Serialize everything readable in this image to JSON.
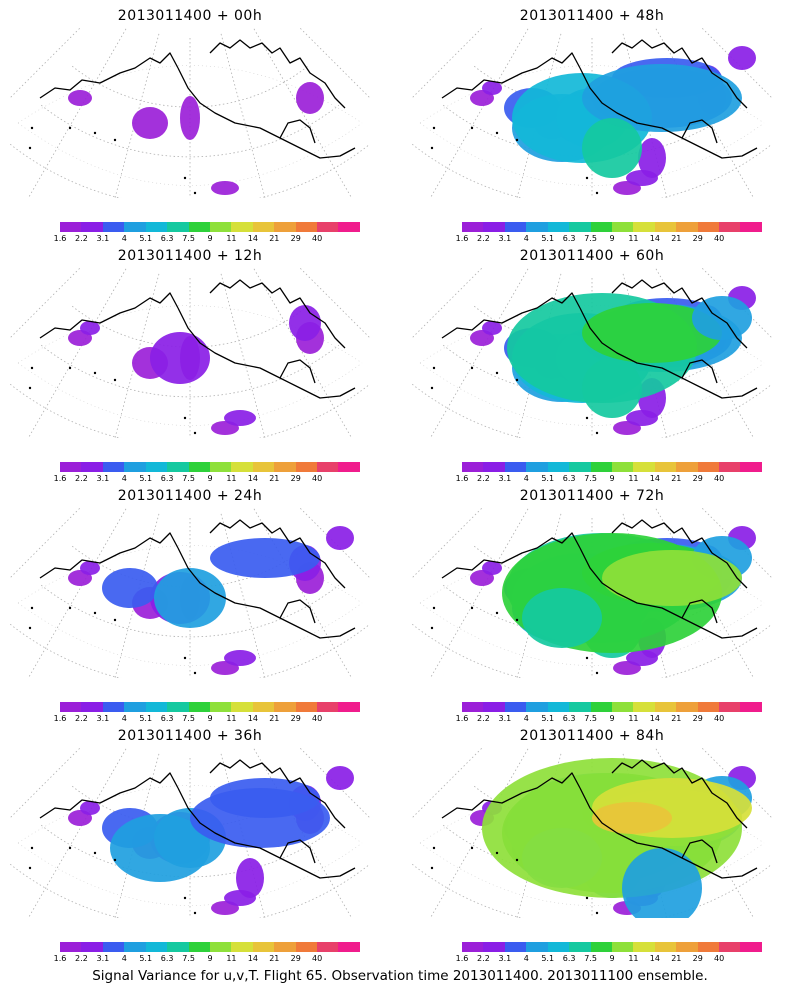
{
  "panels": [
    {
      "title": "2013011400  + 00h",
      "level": 0
    },
    {
      "title": "2013011400  + 48h",
      "level": 4
    },
    {
      "title": "2013011400  + 12h",
      "level": 1
    },
    {
      "title": "2013011400  + 60h",
      "level": 5
    },
    {
      "title": "2013011400  + 24h",
      "level": 2
    },
    {
      "title": "2013011400  + 72h",
      "level": 6
    },
    {
      "title": "2013011400  + 36h",
      "level": 3
    },
    {
      "title": "2013011400  + 84h",
      "level": 7
    }
  ],
  "colorbar": {
    "colors": [
      "#9b1fd8",
      "#8a1ee6",
      "#3a5cf0",
      "#1f9fe0",
      "#12b8d8",
      "#15c9a0",
      "#2ed13a",
      "#8ee03a",
      "#d6e03a",
      "#e8c43a",
      "#eea03a",
      "#f07a3a",
      "#e8406a",
      "#f01c8c"
    ],
    "ticks": [
      "1.6",
      "2.2",
      "3.1",
      "4",
      "5.1",
      "6.3",
      "7.5",
      "9",
      "11",
      "14",
      "21",
      "29",
      "40"
    ]
  },
  "caption": "Signal Variance for u,v,T. Flight 65. Observation time 2013011400. 2013011100 ensemble."
}
